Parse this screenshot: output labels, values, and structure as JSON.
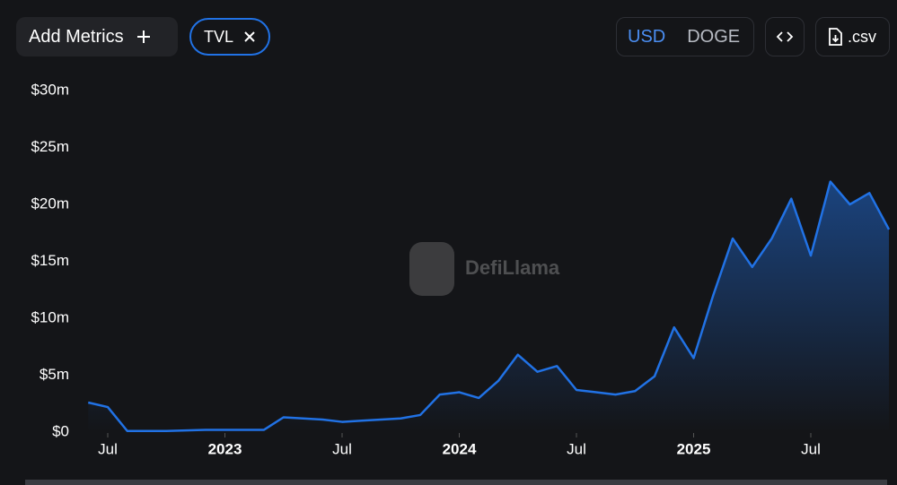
{
  "ui": {
    "add_metrics": "Add Metrics",
    "metric_chip": "TVL",
    "currency_options": [
      "USD",
      "DOGE"
    ],
    "csv_button": ".csv",
    "watermark": "DefiLlama"
  },
  "chart_data": {
    "type": "area",
    "x": [
      "2022-06",
      "2022-07",
      "2022-08",
      "2022-09",
      "2022-10",
      "2022-11",
      "2022-12",
      "2023-01",
      "2023-02",
      "2023-03",
      "2023-04",
      "2023-05",
      "2023-06",
      "2023-07",
      "2023-08",
      "2023-09",
      "2023-10",
      "2023-11",
      "2023-12",
      "2024-01",
      "2024-02",
      "2024-03",
      "2024-04",
      "2024-05",
      "2024-06",
      "2024-07",
      "2024-08",
      "2024-09",
      "2024-10",
      "2024-11",
      "2024-12",
      "2025-01",
      "2025-02",
      "2025-03",
      "2025-04",
      "2025-05",
      "2025-06",
      "2025-07",
      "2025-08",
      "2025-09",
      "2025-10",
      "2025-11"
    ],
    "series": [
      {
        "name": "TVL",
        "color": "#2172e5",
        "values": [
          2.6,
          2.2,
          0.1,
          0.1,
          0.1,
          0.15,
          0.2,
          0.2,
          0.2,
          0.2,
          1.3,
          1.2,
          1.1,
          0.9,
          1.0,
          1.1,
          1.2,
          1.5,
          3.3,
          3.5,
          3.0,
          4.5,
          6.8,
          5.3,
          5.8,
          3.7,
          3.5,
          3.3,
          3.6,
          4.9,
          9.2,
          6.5,
          12,
          17,
          14.5,
          17,
          20.5,
          15.5,
          22,
          20,
          21,
          17.8
        ]
      }
    ],
    "xlim": [
      "2022-05",
      "2025-11"
    ],
    "xticks": [
      {
        "value": "2022-07",
        "label": "Jul"
      },
      {
        "value": "2023-01",
        "label": "2023"
      },
      {
        "value": "2023-07",
        "label": "Jul"
      },
      {
        "value": "2024-01",
        "label": "2024"
      },
      {
        "value": "2024-07",
        "label": "Jul"
      },
      {
        "value": "2025-01",
        "label": "2025"
      },
      {
        "value": "2025-07",
        "label": "Jul"
      }
    ],
    "ylim": [
      0,
      30
    ],
    "yticks": [
      {
        "value": 0,
        "label": "$0"
      },
      {
        "value": 5,
        "label": "$5m"
      },
      {
        "value": 10,
        "label": "$10m"
      },
      {
        "value": 15,
        "label": "$15m"
      },
      {
        "value": 20,
        "label": "$20m"
      },
      {
        "value": 25,
        "label": "$25m"
      },
      {
        "value": 30,
        "label": "$30m"
      }
    ],
    "grid": false
  }
}
